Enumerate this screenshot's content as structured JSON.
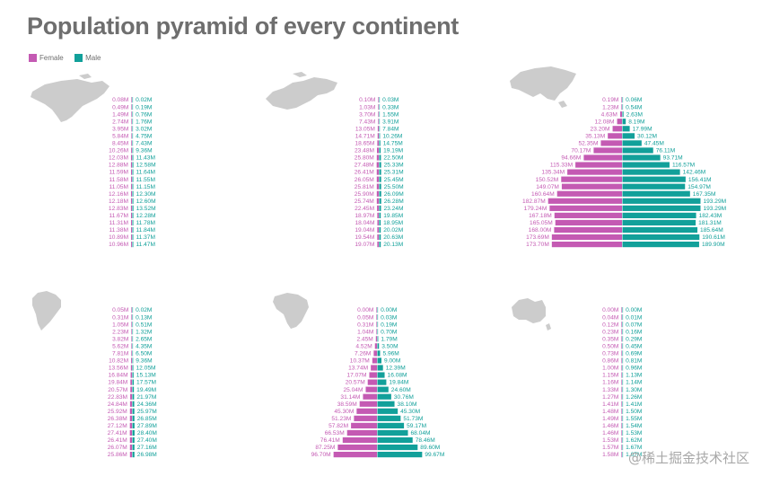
{
  "title": "Population pyramid of every continent",
  "legend": [
    {
      "name": "Female",
      "color": "#c45ab3"
    },
    {
      "name": "Male",
      "color": "#12a09a"
    }
  ],
  "colors": {
    "female": "#c45ab3",
    "male": "#12a09a",
    "map": "#cccccc"
  },
  "watermark": "@稀土掘金技术社区",
  "chart_data": [
    {
      "type": "bar",
      "map_icon": "north-america-map-icon",
      "series": [
        {
          "name": "Female",
          "labels": [
            "0.08M",
            "0.49M",
            "1.49M",
            "2.74M",
            "3.95M",
            "5.84M",
            "8.45M",
            "10.26M",
            "12.03M",
            "12.88M",
            "11.59M",
            "11.58M",
            "11.05M",
            "12.16M",
            "12.18M",
            "12.83M",
            "11.67M",
            "11.31M",
            "11.38M",
            "10.89M",
            "10.96M"
          ],
          "values": [
            0.08,
            0.49,
            1.49,
            2.74,
            3.95,
            5.84,
            8.45,
            10.26,
            12.03,
            12.88,
            11.59,
            11.58,
            11.05,
            12.16,
            12.18,
            12.83,
            11.67,
            11.31,
            11.38,
            10.89,
            10.96
          ]
        },
        {
          "name": "Male",
          "labels": [
            "0.02M",
            "0.19M",
            "0.76M",
            "1.76M",
            "3.02M",
            "4.75M",
            "7.43M",
            "9.36M",
            "11.43M",
            "12.58M",
            "11.64M",
            "11.55M",
            "11.15M",
            "12.30M",
            "12.60M",
            "13.52M",
            "12.28M",
            "11.78M",
            "11.84M",
            "11.37M",
            "11.47M"
          ],
          "values": [
            0.02,
            0.19,
            0.76,
            1.76,
            3.02,
            4.75,
            7.43,
            9.36,
            11.43,
            12.58,
            11.64,
            11.55,
            11.15,
            12.3,
            12.6,
            13.52,
            12.28,
            11.78,
            11.84,
            11.37,
            11.47
          ]
        }
      ]
    },
    {
      "type": "bar",
      "map_icon": "europe-map-icon",
      "series": [
        {
          "name": "Female",
          "labels": [
            "0.10M",
            "1.03M",
            "3.70M",
            "7.43M",
            "13.05M",
            "14.71M",
            "18.65M",
            "23.48M",
            "25.80M",
            "27.48M",
            "26.41M",
            "26.05M",
            "25.81M",
            "25.90M",
            "25.74M",
            "22.45M",
            "18.97M",
            "18.04M",
            "19.04M",
            "19.54M",
            "19.07M"
          ],
          "values": [
            0.1,
            1.03,
            3.7,
            7.43,
            13.05,
            14.71,
            18.65,
            23.48,
            25.8,
            27.48,
            26.41,
            26.05,
            25.81,
            25.9,
            25.74,
            22.45,
            18.97,
            18.04,
            19.04,
            19.54,
            19.07
          ]
        },
        {
          "name": "Male",
          "labels": [
            "0.03M",
            "0.33M",
            "1.55M",
            "3.91M",
            "7.84M",
            "10.26M",
            "14.75M",
            "19.19M",
            "22.50M",
            "25.33M",
            "25.31M",
            "25.45M",
            "25.50M",
            "26.09M",
            "26.28M",
            "23.24M",
            "19.85M",
            "18.95M",
            "20.02M",
            "20.63M",
            "20.13M"
          ],
          "values": [
            0.03,
            0.33,
            1.55,
            3.91,
            7.84,
            10.26,
            14.75,
            19.19,
            22.5,
            25.33,
            25.31,
            25.45,
            25.5,
            26.09,
            26.28,
            23.24,
            19.85,
            18.95,
            20.02,
            20.63,
            20.13
          ]
        }
      ]
    },
    {
      "type": "bar",
      "map_icon": "asia-map-icon",
      "series": [
        {
          "name": "Female",
          "labels": [
            "0.19M",
            "1.23M",
            "4.63M",
            "12.08M",
            "23.20M",
            "35.13M",
            "52.35M",
            "70.17M",
            "94.66M",
            "115.33M",
            "135.34M",
            "150.52M",
            "149.07M",
            "160.64M",
            "182.87M",
            "179.24M",
            "167.18M",
            "165.05M",
            "168.00M",
            "173.69M",
            "173.70M"
          ],
          "values": [
            0.19,
            1.23,
            4.63,
            12.08,
            23.2,
            35.13,
            52.35,
            70.17,
            94.66,
            115.33,
            135.34,
            150.52,
            149.07,
            160.64,
            182.87,
            179.24,
            167.18,
            165.05,
            168.0,
            173.69,
            173.7
          ]
        },
        {
          "name": "Male",
          "labels": [
            "0.06M",
            "0.54M",
            "2.63M",
            "8.19M",
            "17.99M",
            "30.12M",
            "47.45M",
            "76.11M",
            "93.71M",
            "116.57M",
            "142.46M",
            "156.41M",
            "154.97M",
            "167.35M",
            "193.29M",
            "193.29M",
            "182.43M",
            "181.31M",
            "185.64M",
            "190.61M",
            "189.90M"
          ],
          "values": [
            0.06,
            0.54,
            2.63,
            8.19,
            17.99,
            30.12,
            47.45,
            76.11,
            93.71,
            116.57,
            142.46,
            156.41,
            154.97,
            167.35,
            193.29,
            193.29,
            182.43,
            181.31,
            185.64,
            190.61,
            189.9
          ]
        }
      ]
    },
    {
      "type": "bar",
      "map_icon": "south-america-map-icon",
      "series": [
        {
          "name": "Female",
          "labels": [
            "0.05M",
            "0.31M",
            "1.05M",
            "2.23M",
            "3.82M",
            "5.62M",
            "7.81M",
            "10.82M",
            "13.56M",
            "16.84M",
            "19.84M",
            "20.57M",
            "22.83M",
            "24.84M",
            "25.92M",
            "26.38M",
            "27.12M",
            "27.41M",
            "26.41M",
            "26.07M",
            "25.86M"
          ],
          "values": [
            0.05,
            0.31,
            1.05,
            2.23,
            3.82,
            5.62,
            7.81,
            10.82,
            13.56,
            16.84,
            19.84,
            20.57,
            22.83,
            24.84,
            25.92,
            26.38,
            27.12,
            27.41,
            26.41,
            26.07,
            25.86
          ]
        },
        {
          "name": "Male",
          "labels": [
            "0.02M",
            "0.13M",
            "0.51M",
            "1.32M",
            "2.65M",
            "4.35M",
            "6.50M",
            "9.36M",
            "12.05M",
            "15.13M",
            "17.57M",
            "19.49M",
            "21.97M",
            "24.36M",
            "25.97M",
            "26.85M",
            "27.89M",
            "28.40M",
            "27.40M",
            "27.16M",
            "26.98M"
          ],
          "values": [
            0.02,
            0.13,
            0.51,
            1.32,
            2.65,
            4.35,
            6.5,
            9.36,
            12.05,
            15.13,
            17.57,
            19.49,
            21.97,
            24.36,
            25.97,
            26.85,
            27.89,
            28.4,
            27.4,
            27.16,
            26.98
          ]
        }
      ]
    },
    {
      "type": "bar",
      "map_icon": "africa-map-icon",
      "series": [
        {
          "name": "Female",
          "labels": [
            "0.00M",
            "0.05M",
            "0.31M",
            "1.04M",
            "2.45M",
            "4.52M",
            "7.26M",
            "10.37M",
            "13.74M",
            "17.07M",
            "20.57M",
            "25.04M",
            "31.14M",
            "38.59M",
            "45.30M",
            "51.23M",
            "57.82M",
            "66.53M",
            "76.41M",
            "87.25M",
            "96.70M"
          ],
          "values": [
            0.0,
            0.05,
            0.31,
            1.04,
            2.45,
            4.52,
            7.26,
            10.37,
            13.74,
            17.07,
            20.57,
            25.04,
            31.14,
            38.59,
            45.3,
            51.23,
            57.82,
            66.53,
            76.41,
            87.25,
            96.7
          ]
        },
        {
          "name": "Male",
          "labels": [
            "0.00M",
            "0.03M",
            "0.19M",
            "0.70M",
            "1.79M",
            "3.50M",
            "5.96M",
            "9.00M",
            "12.39M",
            "16.08M",
            "19.84M",
            "24.60M",
            "30.76M",
            "38.10M",
            "45.30M",
            "51.73M",
            "59.17M",
            "68.04M",
            "78.46M",
            "89.60M",
            "99.67M"
          ],
          "values": [
            0.0,
            0.03,
            0.19,
            0.7,
            1.79,
            3.5,
            5.96,
            9.0,
            12.39,
            16.08,
            19.84,
            24.6,
            30.76,
            38.1,
            45.3,
            51.73,
            59.17,
            68.04,
            78.46,
            89.6,
            99.67
          ]
        }
      ]
    },
    {
      "type": "bar",
      "map_icon": "oceania-map-icon",
      "series": [
        {
          "name": "Female",
          "labels": [
            "0.00M",
            "0.04M",
            "0.12M",
            "0.23M",
            "0.35M",
            "0.50M",
            "0.73M",
            "0.86M",
            "1.00M",
            "1.15M",
            "1.16M",
            "1.33M",
            "1.27M",
            "1.41M",
            "1.48M",
            "1.49M",
            "1.46M",
            "1.46M",
            "1.53M",
            "1.57M",
            "1.58M"
          ],
          "values": [
            0.0,
            0.04,
            0.12,
            0.23,
            0.35,
            0.5,
            0.73,
            0.86,
            1.0,
            1.15,
            1.16,
            1.33,
            1.27,
            1.41,
            1.48,
            1.49,
            1.46,
            1.46,
            1.53,
            1.57,
            1.58
          ]
        },
        {
          "name": "Male",
          "labels": [
            "0.00M",
            "0.01M",
            "0.07M",
            "0.16M",
            "0.29M",
            "0.45M",
            "0.69M",
            "0.81M",
            "0.96M",
            "1.13M",
            "1.14M",
            "1.30M",
            "1.26M",
            "1.41M",
            "1.50M",
            "1.55M",
            "1.54M",
            "1.53M",
            "1.62M",
            "1.67M",
            "1.67M"
          ],
          "values": [
            0.0,
            0.01,
            0.07,
            0.16,
            0.29,
            0.45,
            0.69,
            0.81,
            0.96,
            1.13,
            1.14,
            1.3,
            1.26,
            1.41,
            1.5,
            1.55,
            1.54,
            1.53,
            1.62,
            1.67,
            1.67
          ]
        }
      ]
    }
  ]
}
